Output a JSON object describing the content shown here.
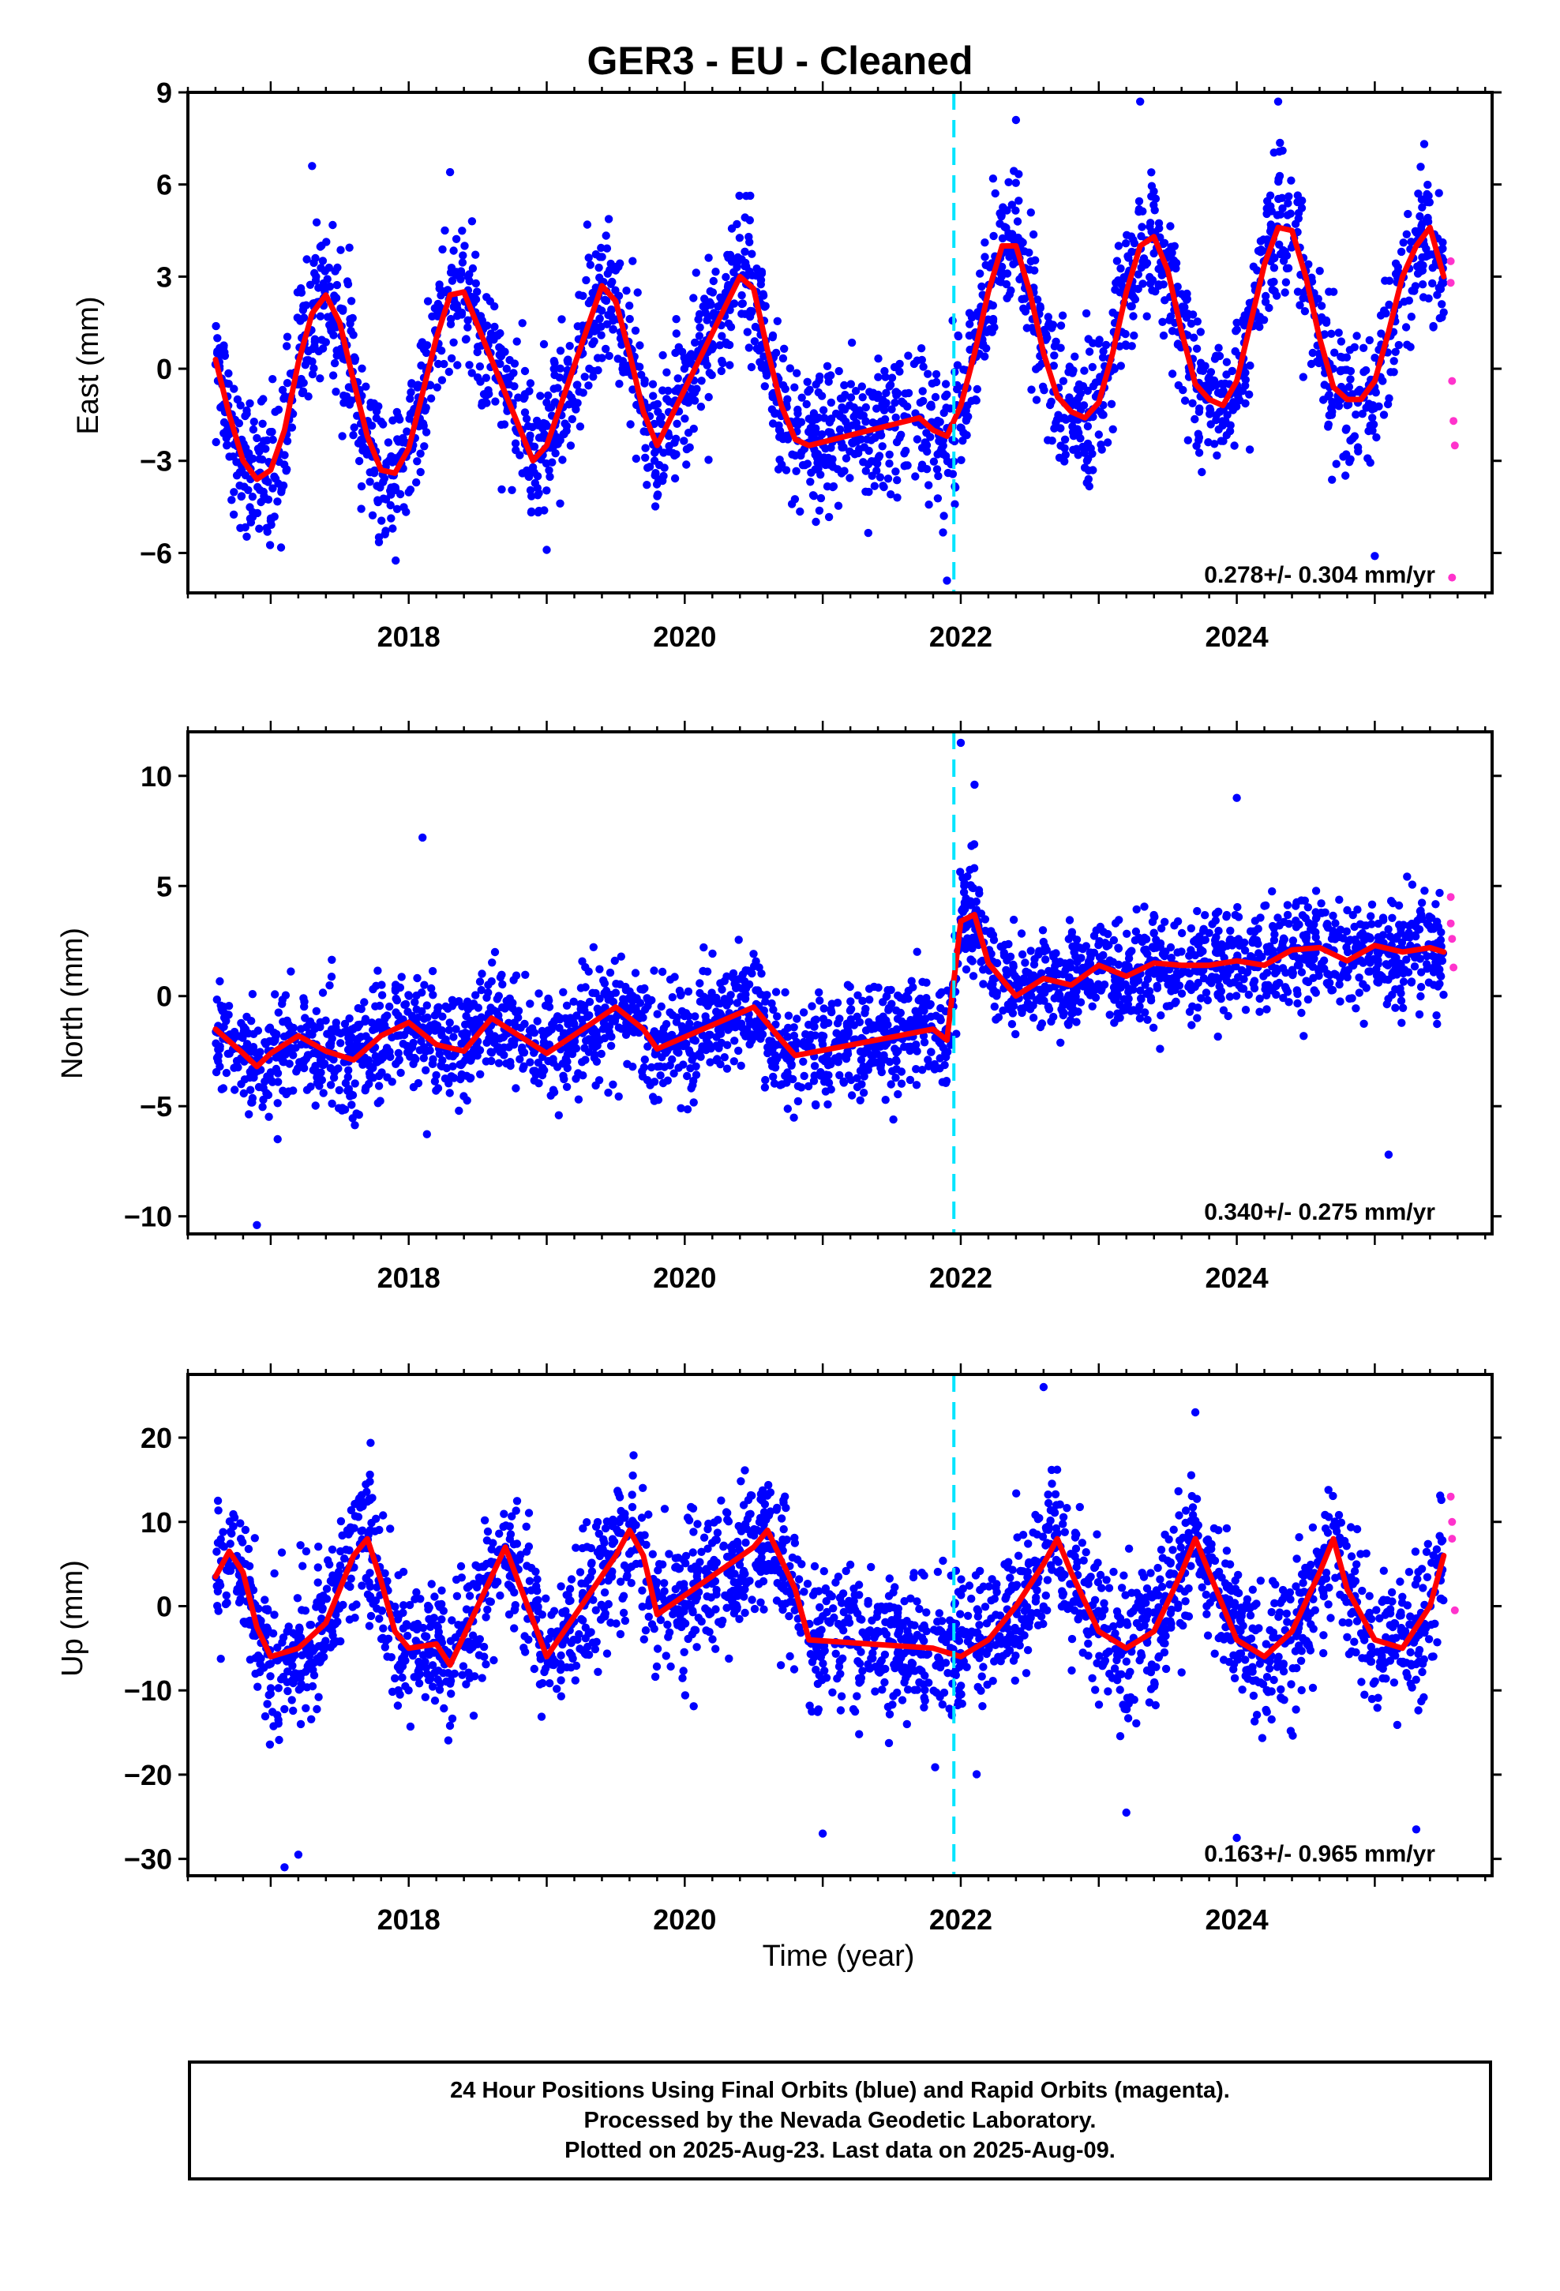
{
  "title": "GER3  - EU - Cleaned",
  "footer": {
    "line1": "24 Hour Positions Using Final Orbits (blue) and Rapid Orbits (magenta).",
    "line2": "Processed by the Nevada Geodetic Laboratory.",
    "line3": "Plotted on 2025-Aug-23. Last data on 2025-Aug-09."
  },
  "colors": {
    "final": "#0000ff",
    "rapid": "#ff33cc",
    "model": "#ff0000",
    "break": "#00e5ff"
  },
  "chart_data": [
    {
      "type": "scatter",
      "ylabel": "East (mm)",
      "xlim": [
        2016.4,
        2025.85
      ],
      "ylim": [
        -7.3,
        9.0
      ],
      "yticks": [
        -6,
        -3,
        0,
        3,
        6,
        9
      ],
      "xticks": [
        2018,
        2020,
        2022,
        2024
      ],
      "xtick_labels": [
        "2018",
        "2020",
        "2022",
        "2024"
      ],
      "break_line": 2021.95,
      "rate_label": "0.278+/- 0.304 mm/yr",
      "series": [
        {
          "values": [
            [
              2016.6,
              0.3
            ],
            [
              2016.7,
              -1.5
            ],
            [
              2016.8,
              -3.0
            ],
            [
              2016.9,
              -3.6
            ],
            [
              2017.0,
              -3.3
            ],
            [
              2017.1,
              -2.0
            ],
            [
              2017.2,
              0.2
            ],
            [
              2017.3,
              1.8
            ],
            [
              2017.4,
              2.4
            ],
            [
              2017.5,
              1.5
            ],
            [
              2017.6,
              -0.4
            ],
            [
              2017.7,
              -2.2
            ],
            [
              2017.8,
              -3.3
            ],
            [
              2017.9,
              -3.4
            ],
            [
              2018.0,
              -2.6
            ],
            [
              2018.1,
              -0.8
            ],
            [
              2018.2,
              1.0
            ],
            [
              2018.3,
              2.4
            ],
            [
              2018.4,
              2.5
            ],
            [
              2018.9,
              -3.0
            ],
            [
              2019.0,
              -2.5
            ],
            [
              2019.4,
              2.7
            ],
            [
              2019.5,
              2.2
            ],
            [
              2019.6,
              0.5
            ],
            [
              2019.7,
              -1.4
            ],
            [
              2019.8,
              -2.5
            ],
            [
              2020.4,
              3.0
            ],
            [
              2020.5,
              2.6
            ],
            [
              2020.6,
              0.6
            ],
            [
              2020.7,
              -1.2
            ],
            [
              2020.8,
              -2.3
            ],
            [
              2020.9,
              -2.5
            ],
            [
              2021.7,
              -1.6
            ],
            [
              2021.8,
              -2.0
            ],
            [
              2021.9,
              -2.2
            ],
            [
              2022.0,
              -1.2
            ],
            [
              2022.1,
              0.5
            ],
            [
              2022.2,
              2.5
            ],
            [
              2022.3,
              4.0
            ],
            [
              2022.4,
              4.0
            ],
            [
              2022.5,
              2.5
            ],
            [
              2022.6,
              0.5
            ],
            [
              2022.7,
              -0.9
            ],
            [
              2022.8,
              -1.4
            ],
            [
              2022.9,
              -1.6
            ],
            [
              2023.0,
              -1.1
            ],
            [
              2023.1,
              0.5
            ],
            [
              2023.2,
              2.5
            ],
            [
              2023.3,
              4.0
            ],
            [
              2023.4,
              4.3
            ],
            [
              2023.5,
              3.2
            ],
            [
              2023.6,
              1.2
            ],
            [
              2023.7,
              -0.5
            ],
            [
              2023.8,
              -1.0
            ],
            [
              2023.9,
              -1.2
            ],
            [
              2024.0,
              -0.4
            ],
            [
              2024.1,
              1.5
            ],
            [
              2024.2,
              3.4
            ],
            [
              2024.3,
              4.6
            ],
            [
              2024.4,
              4.5
            ],
            [
              2024.5,
              3.0
            ],
            [
              2024.6,
              1.0
            ],
            [
              2024.7,
              -0.6
            ],
            [
              2024.8,
              -1.0
            ],
            [
              2024.9,
              -1.0
            ],
            [
              2025.0,
              -0.4
            ],
            [
              2025.1,
              1.2
            ],
            [
              2025.2,
              3.0
            ],
            [
              2025.3,
              4.0
            ],
            [
              2025.4,
              4.6
            ],
            [
              2025.5,
              3.0
            ]
          ]
        },
        {
          "values": [
            [
              2025.55,
              3.5
            ],
            [
              2025.55,
              2.8
            ],
            [
              2025.56,
              -0.4
            ],
            [
              2025.57,
              -1.7
            ],
            [
              2025.58,
              -2.5
            ],
            [
              2025.56,
              -6.8
            ]
          ]
        }
      ],
      "outliers": [
        [
          2017.3,
          6.6
        ],
        [
          2018.3,
          6.4
        ],
        [
          2019.0,
          -5.9
        ],
        [
          2021.9,
          -6.9
        ],
        [
          2022.4,
          8.1
        ],
        [
          2023.3,
          8.7
        ],
        [
          2024.3,
          8.7
        ],
        [
          2025.0,
          -6.1
        ]
      ]
    },
    {
      "type": "scatter",
      "ylabel": "North (mm)",
      "xlim": [
        2016.4,
        2025.85
      ],
      "ylim": [
        -10.8,
        12.0
      ],
      "yticks": [
        -10,
        -5,
        0,
        5,
        10
      ],
      "xticks": [
        2018,
        2020,
        2022,
        2024
      ],
      "xtick_labels": [
        "2018",
        "2020",
        "2022",
        "2024"
      ],
      "break_line": 2021.95,
      "rate_label": "0.340+/- 0.275 mm/yr",
      "series": [
        {
          "values": [
            [
              2016.6,
              -1.5
            ],
            [
              2016.8,
              -2.6
            ],
            [
              2016.9,
              -3.2
            ],
            [
              2017.0,
              -2.6
            ],
            [
              2017.2,
              -1.8
            ],
            [
              2017.4,
              -2.5
            ],
            [
              2017.6,
              -2.9
            ],
            [
              2017.8,
              -1.8
            ],
            [
              2018.0,
              -1.2
            ],
            [
              2018.2,
              -2.2
            ],
            [
              2018.4,
              -2.5
            ],
            [
              2018.6,
              -1.0
            ],
            [
              2019.0,
              -2.6
            ],
            [
              2019.5,
              -0.5
            ],
            [
              2019.7,
              -1.5
            ],
            [
              2019.8,
              -2.4
            ],
            [
              2020.5,
              -0.5
            ],
            [
              2020.7,
              -2.0
            ],
            [
              2020.8,
              -2.7
            ],
            [
              2021.8,
              -1.5
            ],
            [
              2021.9,
              -2.0
            ],
            [
              2022.0,
              3.4
            ],
            [
              2022.1,
              3.7
            ],
            [
              2022.2,
              1.5
            ],
            [
              2022.4,
              0.0
            ],
            [
              2022.6,
              0.8
            ],
            [
              2022.8,
              0.5
            ],
            [
              2023.0,
              1.4
            ],
            [
              2023.2,
              0.9
            ],
            [
              2023.4,
              1.5
            ],
            [
              2023.6,
              1.4
            ],
            [
              2023.8,
              1.4
            ],
            [
              2024.0,
              1.6
            ],
            [
              2024.2,
              1.4
            ],
            [
              2024.4,
              2.1
            ],
            [
              2024.6,
              2.2
            ],
            [
              2024.8,
              1.6
            ],
            [
              2025.0,
              2.3
            ],
            [
              2025.2,
              2.0
            ],
            [
              2025.4,
              2.2
            ],
            [
              2025.5,
              2.0
            ]
          ]
        },
        {
          "values": [
            [
              2025.55,
              4.5
            ],
            [
              2025.55,
              3.3
            ],
            [
              2025.56,
              2.6
            ],
            [
              2025.57,
              1.3
            ]
          ]
        }
      ],
      "outliers": [
        [
          2016.9,
          -10.4
        ],
        [
          2018.1,
          7.2
        ],
        [
          2022.0,
          11.5
        ],
        [
          2022.1,
          9.6
        ],
        [
          2024.0,
          9.0
        ],
        [
          2025.1,
          -7.2
        ]
      ]
    },
    {
      "type": "scatter",
      "ylabel": "Up (mm)",
      "xlim": [
        2016.4,
        2025.85
      ],
      "ylim": [
        -32.0,
        27.5
      ],
      "yticks": [
        -30,
        -20,
        -10,
        0,
        10,
        20
      ],
      "xticks": [
        2018,
        2020,
        2022,
        2024
      ],
      "xtick_labels": [
        "2018",
        "2020",
        "2022",
        "2024"
      ],
      "break_line": 2021.95,
      "rate_label": "0.163+/- 0.965 mm/yr",
      "xlabel": "Time (year)",
      "series": [
        {
          "values": [
            [
              2016.6,
              3.5
            ],
            [
              2016.7,
              6.5
            ],
            [
              2016.8,
              4.0
            ],
            [
              2016.9,
              -2.5
            ],
            [
              2017.0,
              -6.0
            ],
            [
              2017.2,
              -5.0
            ],
            [
              2017.4,
              -2.0
            ],
            [
              2017.6,
              6.0
            ],
            [
              2017.7,
              8.0
            ],
            [
              2017.8,
              3.0
            ],
            [
              2017.9,
              -3.0
            ],
            [
              2018.0,
              -5.0
            ],
            [
              2018.2,
              -4.5
            ],
            [
              2018.3,
              -7.0
            ],
            [
              2018.7,
              7.0
            ],
            [
              2019.0,
              -6.0
            ],
            [
              2019.5,
              6.0
            ],
            [
              2019.6,
              9.0
            ],
            [
              2019.7,
              6.0
            ],
            [
              2019.8,
              -1.0
            ],
            [
              2020.5,
              7.0
            ],
            [
              2020.6,
              9.0
            ],
            [
              2020.8,
              2.0
            ],
            [
              2020.9,
              -4.0
            ],
            [
              2021.8,
              -5.0
            ],
            [
              2022.0,
              -6.0
            ],
            [
              2022.2,
              -4.0
            ],
            [
              2022.4,
              0.0
            ],
            [
              2022.6,
              5.0
            ],
            [
              2022.7,
              8.0
            ],
            [
              2022.8,
              4.0
            ],
            [
              2023.0,
              -3.0
            ],
            [
              2023.2,
              -5.0
            ],
            [
              2023.4,
              -3.0
            ],
            [
              2023.6,
              4.0
            ],
            [
              2023.7,
              8.0
            ],
            [
              2023.8,
              4.0
            ],
            [
              2024.0,
              -4.0
            ],
            [
              2024.2,
              -6.0
            ],
            [
              2024.4,
              -3.0
            ],
            [
              2024.6,
              4.0
            ],
            [
              2024.7,
              8.0
            ],
            [
              2024.8,
              2.0
            ],
            [
              2025.0,
              -4.0
            ],
            [
              2025.2,
              -5.0
            ],
            [
              2025.4,
              0.0
            ],
            [
              2025.5,
              6.0
            ]
          ]
        },
        {
          "values": [
            [
              2025.55,
              13.0
            ],
            [
              2025.56,
              10.0
            ],
            [
              2025.56,
              8.0
            ],
            [
              2025.58,
              -0.5
            ]
          ]
        }
      ],
      "outliers": [
        [
          2017.1,
          -31.0
        ],
        [
          2017.2,
          -29.5
        ],
        [
          2021.0,
          -27.0
        ],
        [
          2022.6,
          26.0
        ],
        [
          2023.2,
          -24.5
        ],
        [
          2023.7,
          23.0
        ],
        [
          2024.0,
          -27.5
        ],
        [
          2025.3,
          -26.5
        ]
      ]
    }
  ]
}
